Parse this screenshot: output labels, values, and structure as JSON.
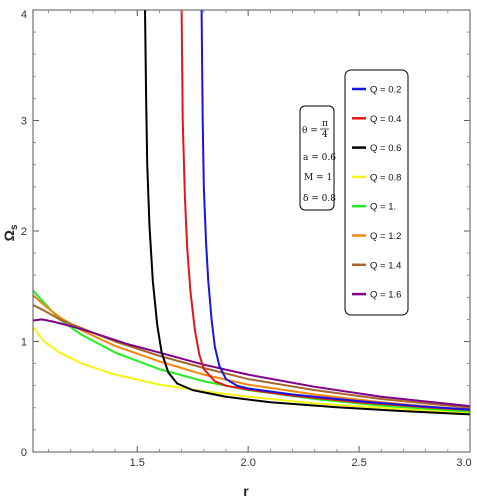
{
  "chart_data": {
    "type": "line",
    "xlabel": "r",
    "ylabel_main": "Ω",
    "ylabel_sub": "s",
    "xlim": [
      1.03,
      3.0
    ],
    "ylim": [
      0,
      4
    ],
    "x_ticks": [
      "1.5",
      "2.0",
      "2.5",
      "3.0"
    ],
    "y_ticks": [
      "0",
      "1",
      "2",
      "3",
      "4"
    ],
    "parameters": {
      "theta_lhs": "θ =",
      "theta_num": "π",
      "theta_den": "4",
      "a": "a = 0.6",
      "M": "M = 1",
      "delta": "δ = 0.8"
    },
    "legend_position": "top-right",
    "series": [
      {
        "name": "Q = 0.2",
        "color": "#1515e6",
        "points": [
          [
            1.79,
            4.0
          ],
          [
            1.795,
            3.0
          ],
          [
            1.8,
            2.4
          ],
          [
            1.81,
            1.9
          ],
          [
            1.82,
            1.55
          ],
          [
            1.835,
            1.2
          ],
          [
            1.85,
            0.95
          ],
          [
            1.87,
            0.78
          ],
          [
            1.9,
            0.66
          ],
          [
            1.95,
            0.6
          ],
          [
            2.0,
            0.575
          ],
          [
            2.2,
            0.52
          ],
          [
            2.5,
            0.46
          ],
          [
            2.8,
            0.41
          ],
          [
            3.0,
            0.385
          ]
        ]
      },
      {
        "name": "Q = 0.4",
        "color": "#e61515",
        "points": [
          [
            1.7,
            4.0
          ],
          [
            1.705,
            3.0
          ],
          [
            1.715,
            2.3
          ],
          [
            1.725,
            1.85
          ],
          [
            1.74,
            1.45
          ],
          [
            1.76,
            1.1
          ],
          [
            1.78,
            0.88
          ],
          [
            1.8,
            0.75
          ],
          [
            1.85,
            0.64
          ],
          [
            1.9,
            0.6
          ],
          [
            2.0,
            0.565
          ],
          [
            2.2,
            0.51
          ],
          [
            2.5,
            0.45
          ],
          [
            2.8,
            0.405
          ],
          [
            3.0,
            0.38
          ]
        ]
      },
      {
        "name": "Q = 0.6",
        "color": "#000000",
        "points": [
          [
            1.535,
            4.0
          ],
          [
            1.54,
            3.2
          ],
          [
            1.545,
            2.6
          ],
          [
            1.555,
            2.05
          ],
          [
            1.57,
            1.55
          ],
          [
            1.59,
            1.15
          ],
          [
            1.61,
            0.9
          ],
          [
            1.64,
            0.72
          ],
          [
            1.68,
            0.62
          ],
          [
            1.75,
            0.56
          ],
          [
            1.9,
            0.5
          ],
          [
            2.1,
            0.45
          ],
          [
            2.4,
            0.405
          ],
          [
            2.7,
            0.37
          ],
          [
            3.0,
            0.34
          ]
        ]
      },
      {
        "name": "Q = 0.8",
        "color": "#f5f514",
        "points": [
          [
            1.03,
            1.13
          ],
          [
            1.08,
            1.0
          ],
          [
            1.15,
            0.9
          ],
          [
            1.25,
            0.8
          ],
          [
            1.4,
            0.7
          ],
          [
            1.6,
            0.61
          ],
          [
            1.8,
            0.55
          ],
          [
            2.0,
            0.5
          ],
          [
            2.3,
            0.44
          ],
          [
            2.6,
            0.4
          ],
          [
            3.0,
            0.35
          ]
        ]
      },
      {
        "name": "Q = 1.",
        "color": "#22ee22",
        "points": [
          [
            1.03,
            1.46
          ],
          [
            1.08,
            1.35
          ],
          [
            1.15,
            1.2
          ],
          [
            1.25,
            1.06
          ],
          [
            1.4,
            0.9
          ],
          [
            1.6,
            0.75
          ],
          [
            1.8,
            0.64
          ],
          [
            2.0,
            0.56
          ],
          [
            2.3,
            0.48
          ],
          [
            2.6,
            0.42
          ],
          [
            3.0,
            0.365
          ]
        ]
      },
      {
        "name": "Q = 1.2",
        "color": "#f5870e",
        "points": [
          [
            1.03,
            1.42
          ],
          [
            1.08,
            1.33
          ],
          [
            1.15,
            1.22
          ],
          [
            1.25,
            1.1
          ],
          [
            1.4,
            0.96
          ],
          [
            1.6,
            0.82
          ],
          [
            1.8,
            0.7
          ],
          [
            2.0,
            0.61
          ],
          [
            2.3,
            0.52
          ],
          [
            2.6,
            0.45
          ],
          [
            3.0,
            0.38
          ]
        ]
      },
      {
        "name": "Q = 1.4",
        "color": "#a8662e",
        "points": [
          [
            1.03,
            1.33
          ],
          [
            1.08,
            1.28
          ],
          [
            1.15,
            1.2
          ],
          [
            1.25,
            1.12
          ],
          [
            1.4,
            1.0
          ],
          [
            1.6,
            0.87
          ],
          [
            1.8,
            0.76
          ],
          [
            2.0,
            0.66
          ],
          [
            2.3,
            0.56
          ],
          [
            2.6,
            0.48
          ],
          [
            3.0,
            0.4
          ]
        ]
      },
      {
        "name": "Q = 1.6",
        "color": "#800088",
        "points": [
          [
            1.03,
            1.19
          ],
          [
            1.07,
            1.2
          ],
          [
            1.12,
            1.18
          ],
          [
            1.2,
            1.14
          ],
          [
            1.3,
            1.08
          ],
          [
            1.45,
            0.98
          ],
          [
            1.6,
            0.9
          ],
          [
            1.8,
            0.79
          ],
          [
            2.0,
            0.7
          ],
          [
            2.3,
            0.59
          ],
          [
            2.6,
            0.5
          ],
          [
            3.0,
            0.415
          ]
        ]
      }
    ]
  }
}
